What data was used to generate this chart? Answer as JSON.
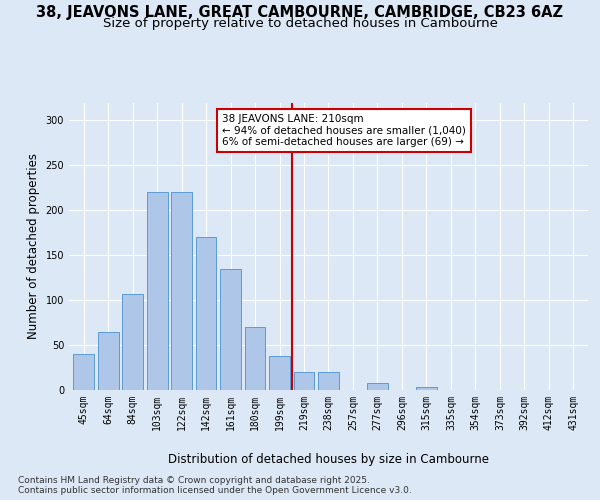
{
  "title": "38, JEAVONS LANE, GREAT CAMBOURNE, CAMBRIDGE, CB23 6AZ",
  "subtitle": "Size of property relative to detached houses in Cambourne",
  "xlabel": "Distribution of detached houses by size in Cambourne",
  "ylabel": "Number of detached properties",
  "bar_labels": [
    "45sqm",
    "64sqm",
    "84sqm",
    "103sqm",
    "122sqm",
    "142sqm",
    "161sqm",
    "180sqm",
    "199sqm",
    "219sqm",
    "238sqm",
    "257sqm",
    "277sqm",
    "296sqm",
    "315sqm",
    "335sqm",
    "354sqm",
    "373sqm",
    "392sqm",
    "412sqm",
    "431sqm"
  ],
  "bar_values": [
    40,
    65,
    107,
    220,
    220,
    170,
    135,
    70,
    38,
    20,
    20,
    0,
    8,
    0,
    3,
    0,
    0,
    0,
    0,
    0,
    0
  ],
  "bar_color": "#aec6e8",
  "bar_edgecolor": "#5b9bd5",
  "vline_bar_index": 8.5,
  "vline_color": "#cc0000",
  "annotation_text": "38 JEAVONS LANE: 210sqm\n← 94% of detached houses are smaller (1,040)\n6% of semi-detached houses are larger (69) →",
  "ylim": [
    0,
    320
  ],
  "yticks": [
    0,
    50,
    100,
    150,
    200,
    250,
    300
  ],
  "background_color": "#dce8f5",
  "footer_text": "Contains HM Land Registry data © Crown copyright and database right 2025.\nContains public sector information licensed under the Open Government Licence v3.0.",
  "title_fontsize": 10.5,
  "subtitle_fontsize": 9.5,
  "label_fontsize": 8.5,
  "tick_fontsize": 7,
  "footer_fontsize": 6.5,
  "ann_fontsize": 7.5
}
